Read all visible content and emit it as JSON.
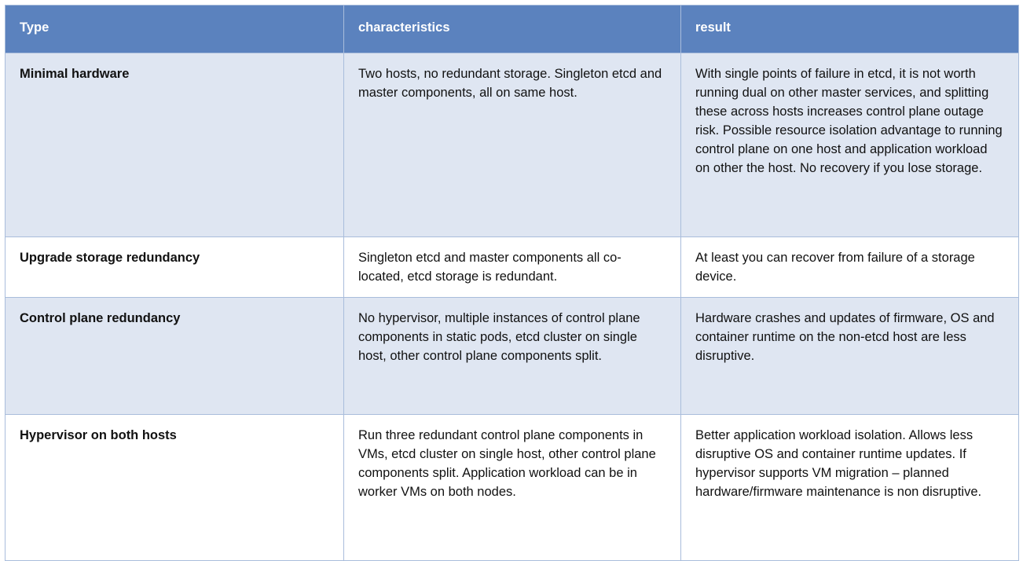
{
  "table": {
    "header": [
      "Type",
      "characteristics",
      "result"
    ],
    "rows": [
      [
        "Minimal hardware",
        "Two hosts, no redundant storage. Singleton etcd and master components, all on same host.",
        "With single points of failure in etcd, it is not worth running dual on other master services, and splitting these across hosts increases control plane outage risk. Possible resource isolation advantage to running control plane on one host and application workload on other the host. No recovery if you lose storage."
      ],
      [
        "Upgrade storage redundancy",
        "Singleton etcd and master components all co-located, etcd storage is redundant.",
        "At least you can recover from failure of a storage device."
      ],
      [
        "Control plane redundancy",
        "No hypervisor, multiple instances of control plane components in static pods, etcd cluster on single host, other control plane components split.",
        "Hardware crashes and updates of firmware, OS and container runtime on the non-etcd host are less disruptive."
      ],
      [
        "Hypervisor on both hosts",
        "Run three redundant control plane components in VMs, etcd cluster on single host, other control plane components split. Application workload can be in worker VMs on both nodes.",
        "Better application workload isolation. Allows less disruptive OS and container runtime updates. If hypervisor supports VM migration – planned hardware/firmware maintenance is non disruptive."
      ]
    ]
  }
}
